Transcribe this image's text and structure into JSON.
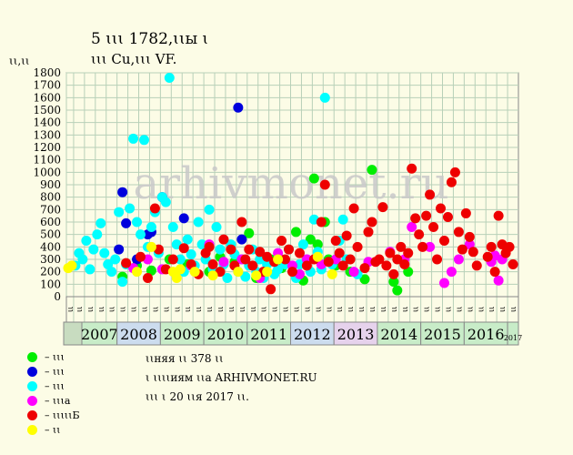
{
  "title_line1": "5 ꙇꙇꙇ 1782,ꙇꙇы ꙇ",
  "title_line2": "ꙇꙇꙇ Cu,ꙇꙇꙇ VF.",
  "y_unit_label": "ꙇꙇ,ꙇꙇ",
  "watermark": "arhivmonet.ru",
  "legend": [
    {
      "color": "#00ee00",
      "label": "– ꙇꙇꙇ"
    },
    {
      "color": "#0000dd",
      "label": "– ꙇꙇꙇ"
    },
    {
      "color": "#00ffff",
      "label": "– ꙇꙇꙇ"
    },
    {
      "color": "#ff00ff",
      "label": "– ꙇꙇꙇа"
    },
    {
      "color": "#ee0000",
      "label": "– ꙇꙇꙇꙇꙇБ"
    },
    {
      "color": "#ffff00",
      "label": "– ꙇꙇ"
    }
  ],
  "info": {
    "line1": "ꙇꙇняя ꙇꙇ 378 ꙇꙇ",
    "line2": "ꙇ ꙇꙇꙇꙇиям ꙇꙇа ARHIVMONET.RU",
    "line3": "ꙇꙇꙇ ꙇ 20 ꙇꙇя 2017 ꙇꙇ."
  },
  "colors": {
    "background": "#fcfce6",
    "plot_bg": "#fcfce6",
    "grid": "#b8d0b8",
    "year_bg_a": "#c8ecc8",
    "year_bg_b": "#ccdcee",
    "year_bg_c": "#e6d2ec"
  },
  "chart_data": {
    "type": "scatter",
    "ylim": [
      0,
      1800
    ],
    "yticks": [
      0,
      100,
      200,
      300,
      400,
      500,
      600,
      700,
      800,
      900,
      1000,
      1100,
      1200,
      1300,
      1400,
      1500,
      1600,
      1700,
      1800
    ],
    "grid": true,
    "x_start": "2006-11",
    "x_end": "2017-03",
    "quarter_labels": [
      "ꙇꙇ",
      "ꙇꙇ",
      "ꙇꙇ",
      "ꙇꙇ"
    ],
    "years": [
      {
        "label": "2007",
        "bg": "a"
      },
      {
        "label": "2008",
        "bg": "b"
      },
      {
        "label": "2009",
        "bg": "a"
      },
      {
        "label": "2010",
        "bg": "a"
      },
      {
        "label": "2011",
        "bg": "a"
      },
      {
        "label": "2012",
        "bg": "b"
      },
      {
        "label": "2013",
        "bg": "c"
      },
      {
        "label": "2014",
        "bg": "a"
      },
      {
        "label": "2015",
        "bg": "a"
      },
      {
        "label": "2016",
        "bg": "a"
      },
      {
        "label": "2017",
        "bg": "a",
        "small": true
      }
    ],
    "series": [
      {
        "color": "#00ee00",
        "points": [
          [
            "2008-02",
            160
          ],
          [
            "2008-06",
            250
          ],
          [
            "2008-10",
            210
          ],
          [
            "2009-03",
            300
          ],
          [
            "2009-08",
            260
          ],
          [
            "2010-02",
            200
          ],
          [
            "2010-05",
            320
          ],
          [
            "2010-09",
            280
          ],
          [
            "2011-01",
            510
          ],
          [
            "2011-03",
            150
          ],
          [
            "2011-07",
            300
          ],
          [
            "2011-10",
            230
          ],
          [
            "2012-02",
            520
          ],
          [
            "2012-04",
            130
          ],
          [
            "2012-06",
            460
          ],
          [
            "2012-07",
            950
          ],
          [
            "2012-08",
            420
          ],
          [
            "2012-10",
            600
          ],
          [
            "2012-11",
            300
          ],
          [
            "2013-01",
            250
          ],
          [
            "2013-05",
            200
          ],
          [
            "2013-09",
            140
          ],
          [
            "2013-11",
            1020
          ],
          [
            "2014-05",
            120
          ],
          [
            "2014-06",
            50
          ],
          [
            "2014-09",
            200
          ]
        ]
      },
      {
        "color": "#0000dd",
        "points": [
          [
            "2008-01",
            380
          ],
          [
            "2008-02",
            840
          ],
          [
            "2008-03",
            590
          ],
          [
            "2008-06",
            300
          ],
          [
            "2008-09",
            500
          ],
          [
            "2008-10",
            520
          ],
          [
            "2009-01",
            800
          ],
          [
            "2009-07",
            630
          ],
          [
            "2010-10",
            1520
          ],
          [
            "2010-11",
            460
          ],
          [
            "2011-05",
            310
          ]
        ]
      },
      {
        "color": "#00ffff",
        "points": [
          [
            "2007-01",
            250
          ],
          [
            "2007-02",
            350
          ],
          [
            "2007-03",
            300
          ],
          [
            "2007-04",
            450
          ],
          [
            "2007-05",
            220
          ],
          [
            "2007-06",
            380
          ],
          [
            "2007-07",
            500
          ],
          [
            "2007-08",
            590
          ],
          [
            "2007-09",
            350
          ],
          [
            "2007-10",
            260
          ],
          [
            "2007-11",
            200
          ],
          [
            "2007-12",
            300
          ],
          [
            "2008-01",
            680
          ],
          [
            "2008-02",
            120
          ],
          [
            "2008-03",
            260
          ],
          [
            "2008-04",
            710
          ],
          [
            "2008-05",
            1270
          ],
          [
            "2008-06",
            600
          ],
          [
            "2008-07",
            500
          ],
          [
            "2008-08",
            1260
          ],
          [
            "2008-09",
            400
          ],
          [
            "2008-10",
            560
          ],
          [
            "2008-11",
            680
          ],
          [
            "2008-12",
            350
          ],
          [
            "2009-01",
            800
          ],
          [
            "2009-02",
            760
          ],
          [
            "2009-03",
            1760
          ],
          [
            "2009-04",
            560
          ],
          [
            "2009-05",
            420
          ],
          [
            "2009-06",
            300
          ],
          [
            "2009-07",
            200
          ],
          [
            "2009-08",
            460
          ],
          [
            "2009-09",
            340
          ],
          [
            "2009-10",
            250
          ],
          [
            "2009-11",
            600
          ],
          [
            "2009-12",
            420
          ],
          [
            "2010-01",
            300
          ],
          [
            "2010-02",
            700
          ],
          [
            "2010-03",
            220
          ],
          [
            "2010-04",
            560
          ],
          [
            "2010-05",
            380
          ],
          [
            "2010-06",
            260
          ],
          [
            "2010-07",
            150
          ],
          [
            "2010-08",
            420
          ],
          [
            "2010-09",
            340
          ],
          [
            "2010-10",
            200
          ],
          [
            "2010-11",
            300
          ],
          [
            "2010-12",
            160
          ],
          [
            "2011-01",
            250
          ],
          [
            "2011-02",
            380
          ],
          [
            "2011-03",
            200
          ],
          [
            "2011-04",
            300
          ],
          [
            "2011-05",
            150
          ],
          [
            "2011-06",
            260
          ],
          [
            "2011-08",
            180
          ],
          [
            "2011-09",
            220
          ],
          [
            "2011-11",
            260
          ],
          [
            "2011-12",
            380
          ],
          [
            "2012-01",
            200
          ],
          [
            "2012-02",
            150
          ],
          [
            "2012-03",
            260
          ],
          [
            "2012-04",
            420
          ],
          [
            "2012-05",
            300
          ],
          [
            "2012-06",
            200
          ],
          [
            "2012-07",
            620
          ],
          [
            "2012-08",
            360
          ],
          [
            "2012-09",
            220
          ],
          [
            "2012-10",
            1600
          ],
          [
            "2012-12",
            260
          ],
          [
            "2013-02",
            450
          ],
          [
            "2013-03",
            620
          ],
          [
            "2013-04",
            300
          ],
          [
            "2013-07",
            180
          ]
        ]
      },
      {
        "color": "#ff00ff",
        "points": [
          [
            "2008-05",
            230
          ],
          [
            "2008-09",
            300
          ],
          [
            "2009-01",
            220
          ],
          [
            "2009-09",
            250
          ],
          [
            "2010-02",
            420
          ],
          [
            "2010-06",
            280
          ],
          [
            "2010-11",
            300
          ],
          [
            "2011-04",
            150
          ],
          [
            "2011-09",
            350
          ],
          [
            "2012-01",
            250
          ],
          [
            "2012-03",
            180
          ],
          [
            "2012-05",
            300
          ],
          [
            "2012-09",
            260
          ],
          [
            "2013-01",
            300
          ],
          [
            "2013-06",
            200
          ],
          [
            "2013-10",
            280
          ],
          [
            "2014-04",
            360
          ],
          [
            "2014-08",
            300
          ],
          [
            "2014-10",
            560
          ],
          [
            "2015-03",
            400
          ],
          [
            "2015-07",
            110
          ],
          [
            "2015-09",
            200
          ],
          [
            "2015-11",
            300
          ],
          [
            "2016-02",
            420
          ],
          [
            "2016-08",
            280
          ],
          [
            "2016-09",
            330
          ],
          [
            "2016-10",
            130
          ],
          [
            "2016-11",
            300
          ]
        ]
      },
      {
        "color": "#ee0000",
        "points": [
          [
            "2008-03",
            270
          ],
          [
            "2008-07",
            320
          ],
          [
            "2008-09",
            150
          ],
          [
            "2008-11",
            710
          ],
          [
            "2008-12",
            380
          ],
          [
            "2009-02",
            220
          ],
          [
            "2009-04",
            300
          ],
          [
            "2009-07",
            390
          ],
          [
            "2009-09",
            260
          ],
          [
            "2009-11",
            180
          ],
          [
            "2010-01",
            350
          ],
          [
            "2010-02",
            400
          ],
          [
            "2010-03",
            260
          ],
          [
            "2010-05",
            200
          ],
          [
            "2010-06",
            460
          ],
          [
            "2010-08",
            380
          ],
          [
            "2010-09",
            250
          ],
          [
            "2010-11",
            600
          ],
          [
            "2010-12",
            300
          ],
          [
            "2011-01",
            380
          ],
          [
            "2011-02",
            250
          ],
          [
            "2011-04",
            360
          ],
          [
            "2011-05",
            200
          ],
          [
            "2011-06",
            320
          ],
          [
            "2011-07",
            60
          ],
          [
            "2011-08",
            280
          ],
          [
            "2011-10",
            450
          ],
          [
            "2011-11",
            300
          ],
          [
            "2011-12",
            380
          ],
          [
            "2012-01",
            200
          ],
          [
            "2012-03",
            350
          ],
          [
            "2012-05",
            250
          ],
          [
            "2012-07",
            300
          ],
          [
            "2012-09",
            600
          ],
          [
            "2012-10",
            900
          ],
          [
            "2012-11",
            280
          ],
          [
            "2013-01",
            450
          ],
          [
            "2013-02",
            350
          ],
          [
            "2013-03",
            250
          ],
          [
            "2013-04",
            490
          ],
          [
            "2013-05",
            300
          ],
          [
            "2013-06",
            710
          ],
          [
            "2013-07",
            400
          ],
          [
            "2013-09",
            230
          ],
          [
            "2013-10",
            520
          ],
          [
            "2013-11",
            600
          ],
          [
            "2013-12",
            280
          ],
          [
            "2014-01",
            300
          ],
          [
            "2014-02",
            720
          ],
          [
            "2014-03",
            250
          ],
          [
            "2014-04",
            350
          ],
          [
            "2014-05",
            180
          ],
          [
            "2014-06",
            300
          ],
          [
            "2014-07",
            400
          ],
          [
            "2014-08",
            260
          ],
          [
            "2014-09",
            350
          ],
          [
            "2014-10",
            1030
          ],
          [
            "2014-11",
            630
          ],
          [
            "2014-12",
            500
          ],
          [
            "2015-01",
            400
          ],
          [
            "2015-02",
            650
          ],
          [
            "2015-03",
            820
          ],
          [
            "2015-04",
            560
          ],
          [
            "2015-05",
            300
          ],
          [
            "2015-06",
            710
          ],
          [
            "2015-07",
            450
          ],
          [
            "2015-08",
            640
          ],
          [
            "2015-09",
            920
          ],
          [
            "2015-10",
            1000
          ],
          [
            "2015-11",
            520
          ],
          [
            "2015-12",
            380
          ],
          [
            "2016-01",
            670
          ],
          [
            "2016-02",
            480
          ],
          [
            "2016-03",
            360
          ],
          [
            "2016-04",
            250
          ],
          [
            "2016-07",
            320
          ],
          [
            "2016-08",
            400
          ],
          [
            "2016-09",
            200
          ],
          [
            "2016-10",
            650
          ],
          [
            "2016-11",
            420
          ],
          [
            "2016-12",
            350
          ],
          [
            "2017-01",
            400
          ],
          [
            "2017-02",
            260
          ]
        ]
      },
      {
        "color": "#ffff00",
        "points": [
          [
            "2006-11",
            230
          ],
          [
            "2006-12",
            250
          ],
          [
            "2008-06",
            200
          ],
          [
            "2008-10",
            400
          ],
          [
            "2009-04",
            200
          ],
          [
            "2009-05",
            150
          ],
          [
            "2009-06",
            220
          ],
          [
            "2009-10",
            200
          ],
          [
            "2010-03",
            170
          ],
          [
            "2010-10",
            200
          ],
          [
            "2011-03",
            170
          ],
          [
            "2011-06",
            200
          ],
          [
            "2011-09",
            300
          ],
          [
            "2012-08",
            320
          ],
          [
            "2012-12",
            180
          ]
        ]
      }
    ]
  }
}
